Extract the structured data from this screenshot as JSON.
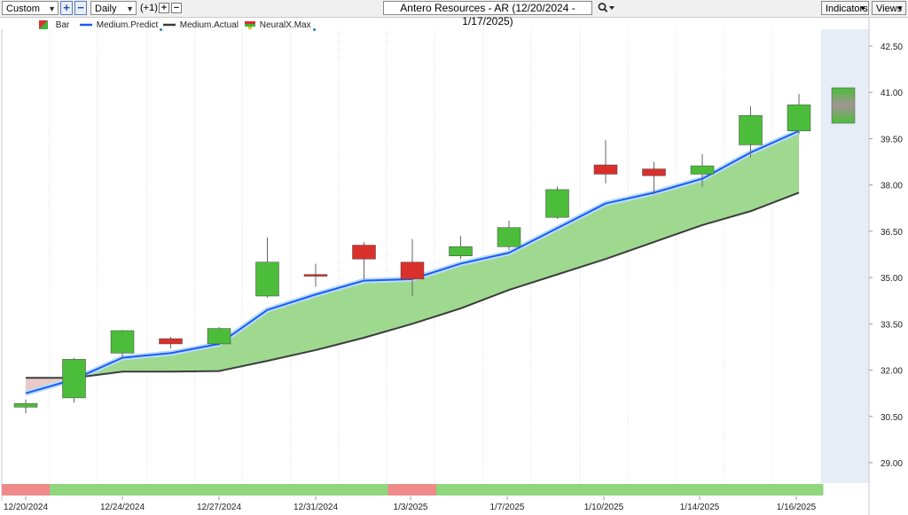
{
  "toolbar": {
    "range_select": "Custom",
    "add_button": "+",
    "remove_button": "−",
    "period_select": "Daily",
    "offset_label": "(+1)",
    "step_plus": "+",
    "step_minus": "−",
    "chart_title": "Antero Resources - AR (12/20/2024 - 1/17/2025)",
    "indicators_button": "Indicators",
    "views_button": "Views",
    "search_icon": "search-icon",
    "dropdown_icon": "chevron-down-icon"
  },
  "legend": {
    "items": [
      {
        "label": "Bar",
        "color": "#d9302c"
      },
      {
        "label": "Medium.Predict",
        "color": "#1a5cf5"
      },
      {
        "label": "Medium.Actual",
        "color": "#3c3c3c"
      },
      {
        "label": "NeuralX.Max",
        "color": "#3ab53a"
      }
    ]
  },
  "chart_data": {
    "type": "candlestick",
    "y_ticks": [
      "42.50",
      "41.00",
      "39.50",
      "38.00",
      "36.50",
      "35.00",
      "33.50",
      "32.00",
      "30.50",
      "29.00"
    ],
    "ylim": [
      29.0,
      43.0
    ],
    "x_labels": [
      "12/20/2024",
      "12/24/2024",
      "12/27/2024",
      "12/31/2024",
      "1/3/2025",
      "1/7/2025",
      "1/10/2025",
      "1/14/2025",
      "1/16/2025"
    ],
    "candles": [
      {
        "open": 30.8,
        "close": 30.92,
        "high": 31.05,
        "low": 30.6
      },
      {
        "open": 31.1,
        "close": 32.35,
        "high": 32.4,
        "low": 30.95
      },
      {
        "open": 32.55,
        "close": 33.28,
        "high": 33.3,
        "low": 32.4
      },
      {
        "open": 33.02,
        "close": 32.85,
        "high": 33.08,
        "low": 32.7
      },
      {
        "open": 32.85,
        "close": 33.35,
        "high": 33.4,
        "low": 32.8
      },
      {
        "open": 34.4,
        "close": 35.5,
        "high": 36.3,
        "low": 34.35
      },
      {
        "open": 35.1,
        "close": 35.05,
        "high": 35.45,
        "low": 34.7
      },
      {
        "open": 36.05,
        "close": 35.6,
        "high": 36.15,
        "low": 34.95
      },
      {
        "open": 35.5,
        "close": 34.95,
        "high": 36.25,
        "low": 34.4
      },
      {
        "open": 35.7,
        "close": 36.0,
        "high": 36.35,
        "low": 35.6
      },
      {
        "open": 36.0,
        "close": 36.62,
        "high": 36.85,
        "low": 35.9
      },
      {
        "open": 36.95,
        "close": 37.85,
        "high": 37.95,
        "low": 36.9
      },
      {
        "open": 38.65,
        "close": 38.35,
        "high": 39.45,
        "low": 38.05
      },
      {
        "open": 38.52,
        "close": 38.3,
        "high": 38.75,
        "low": 37.7
      },
      {
        "open": 38.35,
        "close": 38.62,
        "high": 39.0,
        "low": 37.95
      },
      {
        "open": 39.3,
        "close": 40.25,
        "high": 40.55,
        "low": 38.9
      },
      {
        "open": 39.75,
        "close": 40.6,
        "high": 40.95,
        "low": 39.65
      }
    ],
    "medium_predict": [
      31.25,
      31.7,
      32.4,
      32.55,
      32.85,
      33.95,
      34.45,
      34.9,
      34.95,
      35.45,
      35.8,
      36.6,
      37.4,
      37.75,
      38.2,
      39.05,
      39.75
    ],
    "medium_actual": [
      31.75,
      31.75,
      31.95,
      31.95,
      31.97,
      32.3,
      32.65,
      33.05,
      33.5,
      34.0,
      34.6,
      35.1,
      35.6,
      36.15,
      36.7,
      37.15,
      37.75
    ],
    "neuralx_max_forecast": {
      "top": 41.15,
      "bottom": 40.0
    },
    "signal_strip": [
      "red",
      "green",
      "green",
      "green",
      "green",
      "green",
      "green",
      "green",
      "red",
      "green",
      "green",
      "green",
      "green",
      "green",
      "green",
      "green",
      "green"
    ],
    "colors": {
      "up": "#4cbd3a",
      "down": "#d9302c",
      "predict": "#1a5cf5",
      "actual": "#3c3c3c",
      "fill": "#9fd990",
      "fill_neg": "#eac9c9",
      "forecast_bg": "#e7edf7",
      "strip_green": "#8fd67c",
      "strip_red": "#ee8a8a"
    }
  }
}
